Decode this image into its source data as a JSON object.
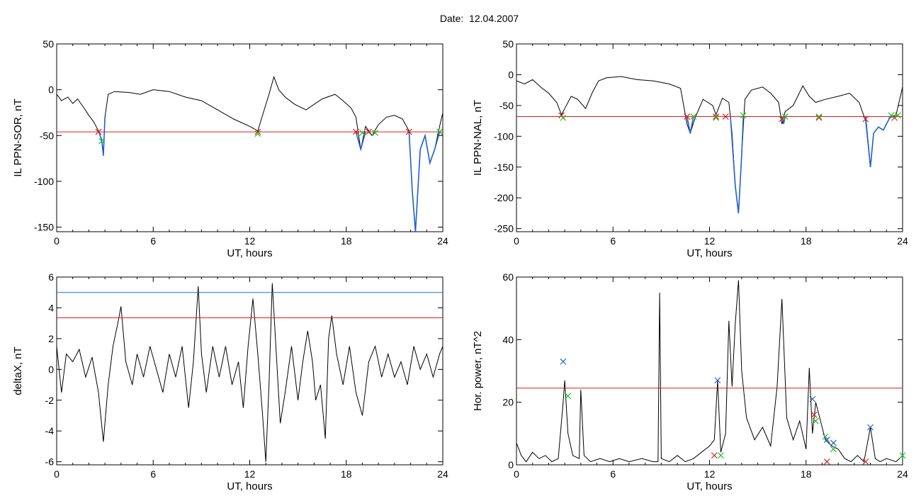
{
  "figure": {
    "date_label": "Date:",
    "date_value": "12.04.2007"
  },
  "colors": {
    "trace": "#000000",
    "threshold": "#e41a1c",
    "upper_threshold": "#1f77d4",
    "highlight": "#1f5fd4",
    "marker_red": "#d42020",
    "marker_green": "#20c020",
    "marker_blue": "#1f5fd4"
  },
  "chart_data": [
    {
      "id": "sor",
      "type": "line",
      "xlabel": "UT, hours",
      "ylabel": "IL PPN-SOR, nT",
      "xlim": [
        0,
        24
      ],
      "ylim": [
        -155,
        50
      ],
      "xticks": [
        0,
        6,
        12,
        18,
        24
      ],
      "yticks": [
        50,
        0,
        -50,
        -100,
        -150
      ],
      "threshold": -46,
      "trace": [
        [
          0,
          -5
        ],
        [
          0.3,
          -12
        ],
        [
          0.7,
          -8
        ],
        [
          1.0,
          -15
        ],
        [
          1.3,
          -10
        ],
        [
          1.7,
          -20
        ],
        [
          2.0,
          -28
        ],
        [
          2.3,
          -35
        ],
        [
          2.6,
          -45
        ],
        [
          2.8,
          -55
        ],
        [
          2.9,
          -72
        ],
        [
          3.0,
          -30
        ],
        [
          3.2,
          -5
        ],
        [
          3.6,
          -2
        ],
        [
          4.5,
          -3
        ],
        [
          5.2,
          -5
        ],
        [
          6.0,
          0
        ],
        [
          7.0,
          -2
        ],
        [
          8.0,
          -8
        ],
        [
          9.0,
          -12
        ],
        [
          10.0,
          -22
        ],
        [
          11.0,
          -32
        ],
        [
          12.0,
          -40
        ],
        [
          12.5,
          -45
        ],
        [
          12.9,
          -22
        ],
        [
          13.2,
          -5
        ],
        [
          13.5,
          14
        ],
        [
          13.8,
          0
        ],
        [
          14.2,
          -8
        ],
        [
          14.8,
          -16
        ],
        [
          15.5,
          -22
        ],
        [
          16.5,
          -10
        ],
        [
          17.3,
          -5
        ],
        [
          17.8,
          -12
        ],
        [
          18.3,
          -20
        ],
        [
          18.6,
          -30
        ],
        [
          18.9,
          -65
        ],
        [
          19.2,
          -40
        ],
        [
          19.6,
          -50
        ],
        [
          20.0,
          -38
        ],
        [
          20.5,
          -30
        ],
        [
          21.0,
          -28
        ],
        [
          21.5,
          -32
        ],
        [
          21.9,
          -45
        ],
        [
          22.1,
          -110
        ],
        [
          22.3,
          -155
        ],
        [
          22.6,
          -65
        ],
        [
          22.9,
          -50
        ],
        [
          23.2,
          -80
        ],
        [
          23.5,
          -65
        ],
        [
          23.8,
          -40
        ],
        [
          24.0,
          -25
        ]
      ],
      "highlight_segments": [
        [
          [
            2.6,
            -45
          ],
          [
            2.8,
            -55
          ],
          [
            2.9,
            -72
          ],
          [
            3.0,
            -30
          ]
        ],
        [
          [
            18.6,
            -46
          ],
          [
            18.9,
            -65
          ],
          [
            19.2,
            -46
          ]
        ],
        [
          [
            19.4,
            -46
          ],
          [
            19.6,
            -50
          ],
          [
            19.8,
            -46
          ]
        ],
        [
          [
            21.9,
            -45
          ],
          [
            22.1,
            -110
          ],
          [
            22.3,
            -155
          ],
          [
            22.6,
            -65
          ],
          [
            22.9,
            -50
          ],
          [
            23.2,
            -80
          ],
          [
            23.5,
            -65
          ],
          [
            23.8,
            -46
          ]
        ]
      ],
      "markers_red": [
        [
          2.6,
          -46
        ],
        [
          12.5,
          -46
        ],
        [
          18.6,
          -46
        ],
        [
          19.4,
          -46
        ],
        [
          21.9,
          -46
        ]
      ],
      "markers_green": [
        [
          2.8,
          -56
        ],
        [
          12.5,
          -48
        ],
        [
          19.0,
          -47
        ],
        [
          19.8,
          -47
        ],
        [
          23.8,
          -46
        ]
      ],
      "markers_blue": []
    },
    {
      "id": "nal",
      "type": "line",
      "xlabel": "UT, hours",
      "ylabel": "IL PPN-NAL, nT",
      "xlim": [
        0,
        24
      ],
      "ylim": [
        -255,
        50
      ],
      "xticks": [
        0,
        6,
        12,
        18,
        24
      ],
      "yticks": [
        50,
        0,
        -50,
        -100,
        -150,
        -200,
        -250
      ],
      "threshold": -68,
      "trace": [
        [
          0,
          -10
        ],
        [
          0.5,
          -15
        ],
        [
          1.0,
          -8
        ],
        [
          1.5,
          -20
        ],
        [
          2.0,
          -30
        ],
        [
          2.5,
          -45
        ],
        [
          2.8,
          -65
        ],
        [
          3.0,
          -55
        ],
        [
          3.4,
          -35
        ],
        [
          3.8,
          -40
        ],
        [
          4.3,
          -55
        ],
        [
          4.7,
          -30
        ],
        [
          5.1,
          -10
        ],
        [
          5.6,
          -5
        ],
        [
          6.5,
          -3
        ],
        [
          7.5,
          -8
        ],
        [
          8.5,
          -10
        ],
        [
          9.5,
          -15
        ],
        [
          10.2,
          -22
        ],
        [
          10.6,
          -80
        ],
        [
          10.8,
          -95
        ],
        [
          11.1,
          -70
        ],
        [
          11.6,
          -40
        ],
        [
          12.2,
          -50
        ],
        [
          12.4,
          -65
        ],
        [
          12.8,
          -38
        ],
        [
          13.2,
          -45
        ],
        [
          13.4,
          -95
        ],
        [
          13.6,
          -180
        ],
        [
          13.8,
          -225
        ],
        [
          14.0,
          -130
        ],
        [
          14.2,
          -40
        ],
        [
          14.6,
          -25
        ],
        [
          15.3,
          -20
        ],
        [
          15.8,
          -30
        ],
        [
          16.3,
          -45
        ],
        [
          16.5,
          -80
        ],
        [
          16.7,
          -60
        ],
        [
          17.2,
          -50
        ],
        [
          17.8,
          -18
        ],
        [
          18.2,
          -35
        ],
        [
          18.6,
          -45
        ],
        [
          19.2,
          -40
        ],
        [
          20.0,
          -35
        ],
        [
          20.7,
          -30
        ],
        [
          21.3,
          -45
        ],
        [
          21.7,
          -75
        ],
        [
          22.0,
          -150
        ],
        [
          22.2,
          -95
        ],
        [
          22.5,
          -85
        ],
        [
          22.8,
          -90
        ],
        [
          23.2,
          -70
        ],
        [
          23.6,
          -65
        ],
        [
          24.0,
          -20
        ]
      ],
      "highlight_segments": [
        [
          [
            10.6,
            -68
          ],
          [
            10.8,
            -95
          ],
          [
            11.0,
            -68
          ]
        ],
        [
          [
            13.3,
            -68
          ],
          [
            13.6,
            -180
          ],
          [
            13.8,
            -225
          ],
          [
            14.0,
            -130
          ],
          [
            14.1,
            -68
          ]
        ],
        [
          [
            16.5,
            -68
          ],
          [
            16.6,
            -80
          ],
          [
            16.7,
            -68
          ]
        ],
        [
          [
            21.7,
            -68
          ],
          [
            22.0,
            -150
          ],
          [
            22.2,
            -95
          ],
          [
            22.5,
            -85
          ],
          [
            22.8,
            -90
          ],
          [
            23.2,
            -70
          ],
          [
            23.4,
            -68
          ]
        ]
      ],
      "markers_red": [
        [
          2.8,
          -66
        ],
        [
          10.6,
          -68
        ],
        [
          12.4,
          -68
        ],
        [
          13.0,
          -68
        ],
        [
          16.5,
          -72
        ],
        [
          18.8,
          -70
        ],
        [
          21.7,
          -72
        ],
        [
          23.5,
          -70
        ]
      ],
      "markers_green": [
        [
          2.9,
          -70
        ],
        [
          11.0,
          -68
        ],
        [
          12.4,
          -70
        ],
        [
          14.1,
          -66
        ],
        [
          16.7,
          -68
        ],
        [
          18.8,
          -68
        ],
        [
          23.3,
          -66
        ],
        [
          23.7,
          -66
        ]
      ],
      "markers_blue": []
    },
    {
      "id": "deltax",
      "type": "line",
      "xlabel": "UT, hours",
      "ylabel": "deltaX, nT",
      "xlim": [
        0,
        24
      ],
      "ylim": [
        -6.2,
        6
      ],
      "xticks": [
        0,
        6,
        12,
        18,
        24
      ],
      "yticks": [
        6,
        4,
        2,
        0,
        -2,
        -4,
        -6
      ],
      "threshold": 3.35,
      "threshold_upper": 5.0,
      "trace": [
        [
          0,
          1.5
        ],
        [
          0.3,
          -1.5
        ],
        [
          0.6,
          1.0
        ],
        [
          1.0,
          0.5
        ],
        [
          1.4,
          1.3
        ],
        [
          1.8,
          -0.5
        ],
        [
          2.2,
          0.8
        ],
        [
          2.6,
          -1.5
        ],
        [
          2.9,
          -4.7
        ],
        [
          3.2,
          -1.0
        ],
        [
          3.5,
          1.5
        ],
        [
          3.8,
          3.0
        ],
        [
          4.0,
          4.1
        ],
        [
          4.3,
          0.5
        ],
        [
          4.7,
          -1.0
        ],
        [
          5.0,
          1.0
        ],
        [
          5.4,
          -0.5
        ],
        [
          5.8,
          1.5
        ],
        [
          6.2,
          0.0
        ],
        [
          6.6,
          -1.5
        ],
        [
          7.0,
          1.0
        ],
        [
          7.4,
          -0.5
        ],
        [
          7.8,
          1.5
        ],
        [
          8.2,
          -2.5
        ],
        [
          8.5,
          0.5
        ],
        [
          8.8,
          5.4
        ],
        [
          9.0,
          1.0
        ],
        [
          9.3,
          -1.5
        ],
        [
          9.7,
          1.5
        ],
        [
          10.1,
          -0.5
        ],
        [
          10.5,
          1.5
        ],
        [
          10.9,
          -1.0
        ],
        [
          11.3,
          0.5
        ],
        [
          11.6,
          -2.5
        ],
        [
          11.9,
          1.5
        ],
        [
          12.2,
          4.6
        ],
        [
          12.5,
          1.0
        ],
        [
          12.8,
          -3.0
        ],
        [
          13.0,
          -6.0
        ],
        [
          13.2,
          -1.0
        ],
        [
          13.4,
          5.6
        ],
        [
          13.6,
          2.0
        ],
        [
          13.9,
          -3.5
        ],
        [
          14.2,
          -1.5
        ],
        [
          14.6,
          1.5
        ],
        [
          15.0,
          -2.0
        ],
        [
          15.3,
          0.5
        ],
        [
          15.6,
          2.5
        ],
        [
          15.9,
          0.5
        ],
        [
          16.1,
          -2.0
        ],
        [
          16.4,
          -1.0
        ],
        [
          16.7,
          -4.5
        ],
        [
          16.9,
          2.0
        ],
        [
          17.1,
          3.5
        ],
        [
          17.4,
          1.0
        ],
        [
          17.8,
          -1.0
        ],
        [
          18.2,
          1.5
        ],
        [
          18.6,
          -1.5
        ],
        [
          19.0,
          -3.0
        ],
        [
          19.4,
          0.5
        ],
        [
          19.8,
          1.5
        ],
        [
          20.2,
          -0.5
        ],
        [
          20.6,
          1.0
        ],
        [
          21.0,
          -0.5
        ],
        [
          21.4,
          0.5
        ],
        [
          21.8,
          -1.0
        ],
        [
          22.2,
          1.5
        ],
        [
          22.6,
          0.0
        ],
        [
          23.0,
          1.0
        ],
        [
          23.4,
          -0.5
        ],
        [
          23.8,
          1.0
        ],
        [
          24.0,
          1.5
        ]
      ],
      "highlight_segments": [],
      "markers_red": [],
      "markers_green": [],
      "markers_blue": []
    },
    {
      "id": "power",
      "type": "line",
      "xlabel": "UT, hours",
      "ylabel": "Hor. power, nT^2",
      "xlim": [
        0,
        24
      ],
      "ylim": [
        0,
        60
      ],
      "xticks": [
        0,
        6,
        12,
        18,
        24
      ],
      "yticks": [
        60,
        40,
        20,
        0
      ],
      "threshold": 24.5,
      "trace": [
        [
          0,
          7
        ],
        [
          0.3,
          3
        ],
        [
          0.6,
          1
        ],
        [
          1.0,
          4
        ],
        [
          1.4,
          2
        ],
        [
          1.8,
          3
        ],
        [
          2.2,
          1
        ],
        [
          2.6,
          2
        ],
        [
          2.9,
          20
        ],
        [
          3.0,
          27
        ],
        [
          3.2,
          10
        ],
        [
          3.5,
          3
        ],
        [
          3.9,
          2
        ],
        [
          4.0,
          24
        ],
        [
          4.2,
          3
        ],
        [
          4.6,
          1
        ],
        [
          5.2,
          2
        ],
        [
          5.8,
          1
        ],
        [
          6.4,
          2
        ],
        [
          7.0,
          1
        ],
        [
          7.8,
          2
        ],
        [
          8.5,
          1
        ],
        [
          8.8,
          1
        ],
        [
          8.9,
          55
        ],
        [
          9.0,
          2
        ],
        [
          9.5,
          1
        ],
        [
          10.0,
          3
        ],
        [
          10.5,
          1
        ],
        [
          11.0,
          2
        ],
        [
          11.5,
          4
        ],
        [
          12.0,
          6
        ],
        [
          12.3,
          8
        ],
        [
          12.5,
          27
        ],
        [
          12.7,
          4
        ],
        [
          13.0,
          10
        ],
        [
          13.2,
          46
        ],
        [
          13.4,
          25
        ],
        [
          13.6,
          45
        ],
        [
          13.8,
          59
        ],
        [
          14.0,
          30
        ],
        [
          14.3,
          15
        ],
        [
          14.8,
          8
        ],
        [
          15.3,
          12
        ],
        [
          15.8,
          6
        ],
        [
          16.2,
          25
        ],
        [
          16.5,
          53
        ],
        [
          16.8,
          15
        ],
        [
          17.2,
          8
        ],
        [
          17.6,
          14
        ],
        [
          18.0,
          5
        ],
        [
          18.2,
          31
        ],
        [
          18.4,
          10
        ],
        [
          18.6,
          20
        ],
        [
          18.9,
          14
        ],
        [
          19.2,
          8
        ],
        [
          19.6,
          6
        ],
        [
          20.0,
          5
        ],
        [
          20.4,
          2
        ],
        [
          20.8,
          1
        ],
        [
          21.2,
          3
        ],
        [
          21.6,
          1
        ],
        [
          22.0,
          12
        ],
        [
          22.3,
          2
        ],
        [
          22.6,
          1
        ],
        [
          23.0,
          2
        ],
        [
          23.6,
          1
        ],
        [
          24.0,
          3
        ]
      ],
      "highlight_segments": [],
      "markers_red": [
        [
          12.3,
          3
        ],
        [
          18.5,
          16
        ],
        [
          19.3,
          1
        ],
        [
          21.7,
          1
        ]
      ],
      "markers_green": [
        [
          3.2,
          22
        ],
        [
          12.7,
          3
        ],
        [
          18.6,
          14
        ],
        [
          19.2,
          9
        ],
        [
          19.7,
          5
        ],
        [
          24.0,
          3
        ]
      ],
      "markers_blue": [
        [
          2.9,
          33
        ],
        [
          12.5,
          27
        ],
        [
          18.4,
          21
        ],
        [
          19.3,
          8
        ],
        [
          19.7,
          7
        ],
        [
          22.0,
          12
        ]
      ]
    }
  ]
}
